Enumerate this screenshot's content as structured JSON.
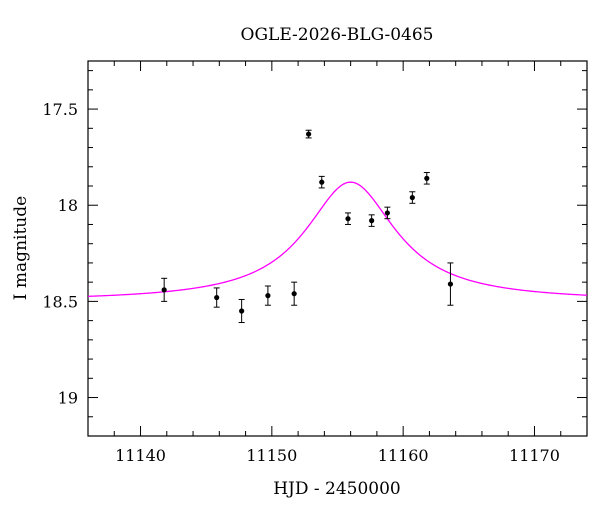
{
  "chart_data": {
    "type": "scatter",
    "title": "OGLE-2026-BLG-0465",
    "xlabel": "HJD - 2450000",
    "ylabel": "I magnitude",
    "xlim": [
      11136,
      11174
    ],
    "ylim": [
      19.2,
      17.25
    ],
    "y_inverted": true,
    "x_ticks": [
      11140,
      11150,
      11160,
      11170
    ],
    "x_tick_labels": [
      "11140",
      "11150",
      "11160",
      "11170"
    ],
    "y_ticks": [
      17.5,
      18,
      18.5,
      19
    ],
    "y_tick_labels": [
      "17.5",
      "18",
      "18.5",
      "19"
    ],
    "points": [
      {
        "x": 11141.8,
        "y": 18.44,
        "err": 0.06
      },
      {
        "x": 11145.8,
        "y": 18.48,
        "err": 0.05
      },
      {
        "x": 11147.7,
        "y": 18.55,
        "err": 0.06
      },
      {
        "x": 11149.7,
        "y": 18.47,
        "err": 0.05
      },
      {
        "x": 11151.7,
        "y": 18.46,
        "err": 0.06
      },
      {
        "x": 11152.8,
        "y": 17.63,
        "err": 0.02
      },
      {
        "x": 11153.8,
        "y": 17.88,
        "err": 0.03
      },
      {
        "x": 11155.8,
        "y": 18.07,
        "err": 0.03
      },
      {
        "x": 11157.6,
        "y": 18.08,
        "err": 0.03
      },
      {
        "x": 11158.8,
        "y": 18.04,
        "err": 0.03
      },
      {
        "x": 11160.7,
        "y": 17.96,
        "err": 0.03
      },
      {
        "x": 11161.8,
        "y": 17.86,
        "err": 0.03
      },
      {
        "x": 11163.6,
        "y": 18.41,
        "err": 0.11
      }
    ],
    "model_curve": {
      "color": "#ff00ff",
      "shape": "lorentzian",
      "baseline": 18.5,
      "peak": 17.88,
      "t0": 11156.0,
      "width": 4.2
    },
    "grid": false,
    "legend": "none"
  }
}
